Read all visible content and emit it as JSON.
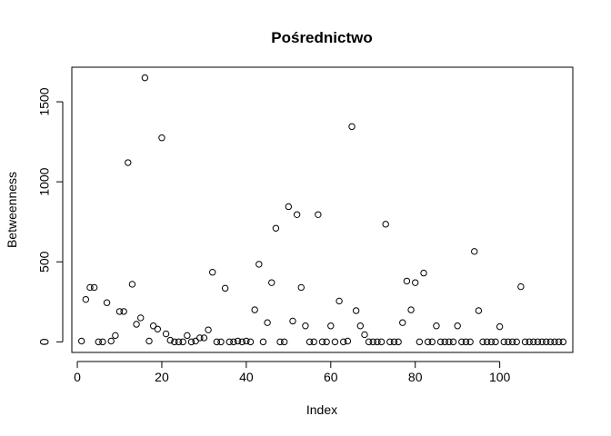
{
  "chart_data": {
    "type": "scatter",
    "title": "Pośrednictwo",
    "xlabel": "Index",
    "ylabel": "Betweenness",
    "xlim": [
      -1.3,
      117.3
    ],
    "ylim": [
      -66,
      1716
    ],
    "xticks": [
      0,
      20,
      40,
      60,
      80,
      100
    ],
    "yticks": [
      0,
      500,
      1000,
      1500
    ],
    "xtick_labels": [
      "0",
      "20",
      "40",
      "60",
      "80",
      "100"
    ],
    "ytick_labels": [
      "0",
      "500",
      "1000",
      "1500"
    ],
    "grid": false,
    "marker": "open-circle",
    "color": "#000000",
    "series": [
      {
        "x": [
          1,
          2,
          3,
          4,
          5,
          6,
          7,
          8,
          9,
          10,
          11,
          12,
          13,
          14,
          15,
          16,
          17,
          18,
          19,
          20,
          21,
          22,
          23,
          24,
          25,
          26,
          27,
          28,
          29,
          30,
          31,
          32,
          33,
          34,
          35,
          36,
          37,
          38,
          39,
          40,
          41,
          42,
          43,
          44,
          45,
          46,
          47,
          48,
          49,
          50,
          51,
          52,
          53,
          54,
          55,
          56,
          57,
          58,
          59,
          60,
          61,
          62,
          63,
          64,
          65,
          66,
          67,
          68,
          69,
          70,
          71,
          72,
          73,
          74,
          75,
          76,
          77,
          78,
          79,
          80,
          81,
          82,
          83,
          84,
          85,
          86,
          87,
          88,
          89,
          90,
          91,
          92,
          93,
          94,
          95,
          96,
          97,
          98,
          99,
          100,
          101,
          102,
          103,
          104,
          105,
          106,
          107,
          108,
          109,
          110,
          111,
          112,
          113,
          114,
          115
        ],
        "y": [
          5,
          265,
          340,
          340,
          0,
          0,
          245,
          5,
          40,
          190,
          190,
          1120,
          360,
          110,
          150,
          1650,
          5,
          100,
          80,
          1275,
          50,
          10,
          0,
          0,
          0,
          40,
          0,
          5,
          25,
          25,
          75,
          435,
          0,
          0,
          335,
          0,
          0,
          5,
          0,
          5,
          0,
          200,
          485,
          0,
          120,
          370,
          710,
          0,
          0,
          845,
          130,
          795,
          340,
          100,
          0,
          0,
          795,
          0,
          0,
          100,
          0,
          255,
          0,
          5,
          1345,
          195,
          100,
          45,
          0,
          0,
          0,
          0,
          735,
          0,
          0,
          0,
          120,
          380,
          200,
          370,
          0,
          430,
          0,
          0,
          100,
          0,
          0,
          0,
          0,
          100,
          0,
          0,
          0,
          565,
          195,
          0,
          0,
          0,
          0,
          95,
          0,
          0,
          0,
          0,
          345,
          0,
          0,
          0,
          0,
          0,
          0,
          0,
          0,
          0,
          0
        ]
      }
    ]
  }
}
